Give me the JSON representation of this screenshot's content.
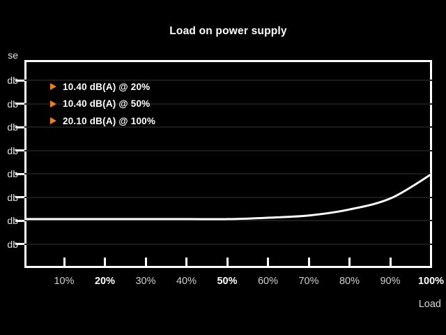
{
  "title": "Load on power supply",
  "y_axis": {
    "title_visible": "se",
    "tick_label": "db",
    "tick_count": 8
  },
  "x_axis": {
    "title": "Load",
    "ticks": [
      {
        "label": "10%",
        "bold": false
      },
      {
        "label": "20%",
        "bold": true
      },
      {
        "label": "30%",
        "bold": false
      },
      {
        "label": "40%",
        "bold": false
      },
      {
        "label": "50%",
        "bold": true
      },
      {
        "label": "60%",
        "bold": false
      },
      {
        "label": "70%",
        "bold": false
      },
      {
        "label": "80%",
        "bold": false
      },
      {
        "label": "90%",
        "bold": false
      },
      {
        "label": "100%",
        "bold": true
      }
    ]
  },
  "legend": {
    "items": [
      {
        "marker": "arrow-right",
        "text": "10.40 dB(A) @ 20%"
      },
      {
        "marker": "arrow-right",
        "text": "10.40 dB(A) @ 50%"
      },
      {
        "marker": "arrow-right",
        "text": "20.10 dB(A) @ 100%"
      }
    ]
  },
  "colors": {
    "background": "#000000",
    "axis": "#ffffff",
    "grid_line": "#1b1b1b",
    "curve": "#ffffff",
    "accent_orange": "#f08119",
    "text_bright": "#ffffff",
    "text_dim": "#cfcfcf"
  },
  "chart_data": {
    "type": "line",
    "title": "Load on power supply",
    "xlabel": "Load",
    "ylabel_visible": "se",
    "y_tick_label_visible": "db",
    "y_unit": "dB(A)",
    "x": [
      0,
      10,
      20,
      30,
      40,
      50,
      60,
      70,
      80,
      90,
      100
    ],
    "series": [
      {
        "name": "Noise dB(A)",
        "values": [
          10.4,
          10.4,
          10.4,
          10.4,
          10.4,
          10.4,
          10.7,
          11.2,
          12.5,
          14.9,
          20.1
        ]
      }
    ],
    "labeled_points": [
      {
        "x": 20,
        "y": 10.4,
        "label": "10.40 dB(A) @ 20%"
      },
      {
        "x": 50,
        "y": 10.4,
        "label": "10.40 dB(A) @ 50%"
      },
      {
        "x": 100,
        "y": 20.1,
        "label": "20.10 dB(A) @ 100%"
      }
    ],
    "xlim": [
      0,
      100
    ],
    "ylim_estimated": [
      2.5,
      44
    ],
    "gridlines_db_estimated": [
      40,
      35,
      30,
      25,
      20,
      15,
      10,
      5
    ],
    "grid": "horizontal-only",
    "legend_position": "top-left-inside"
  }
}
